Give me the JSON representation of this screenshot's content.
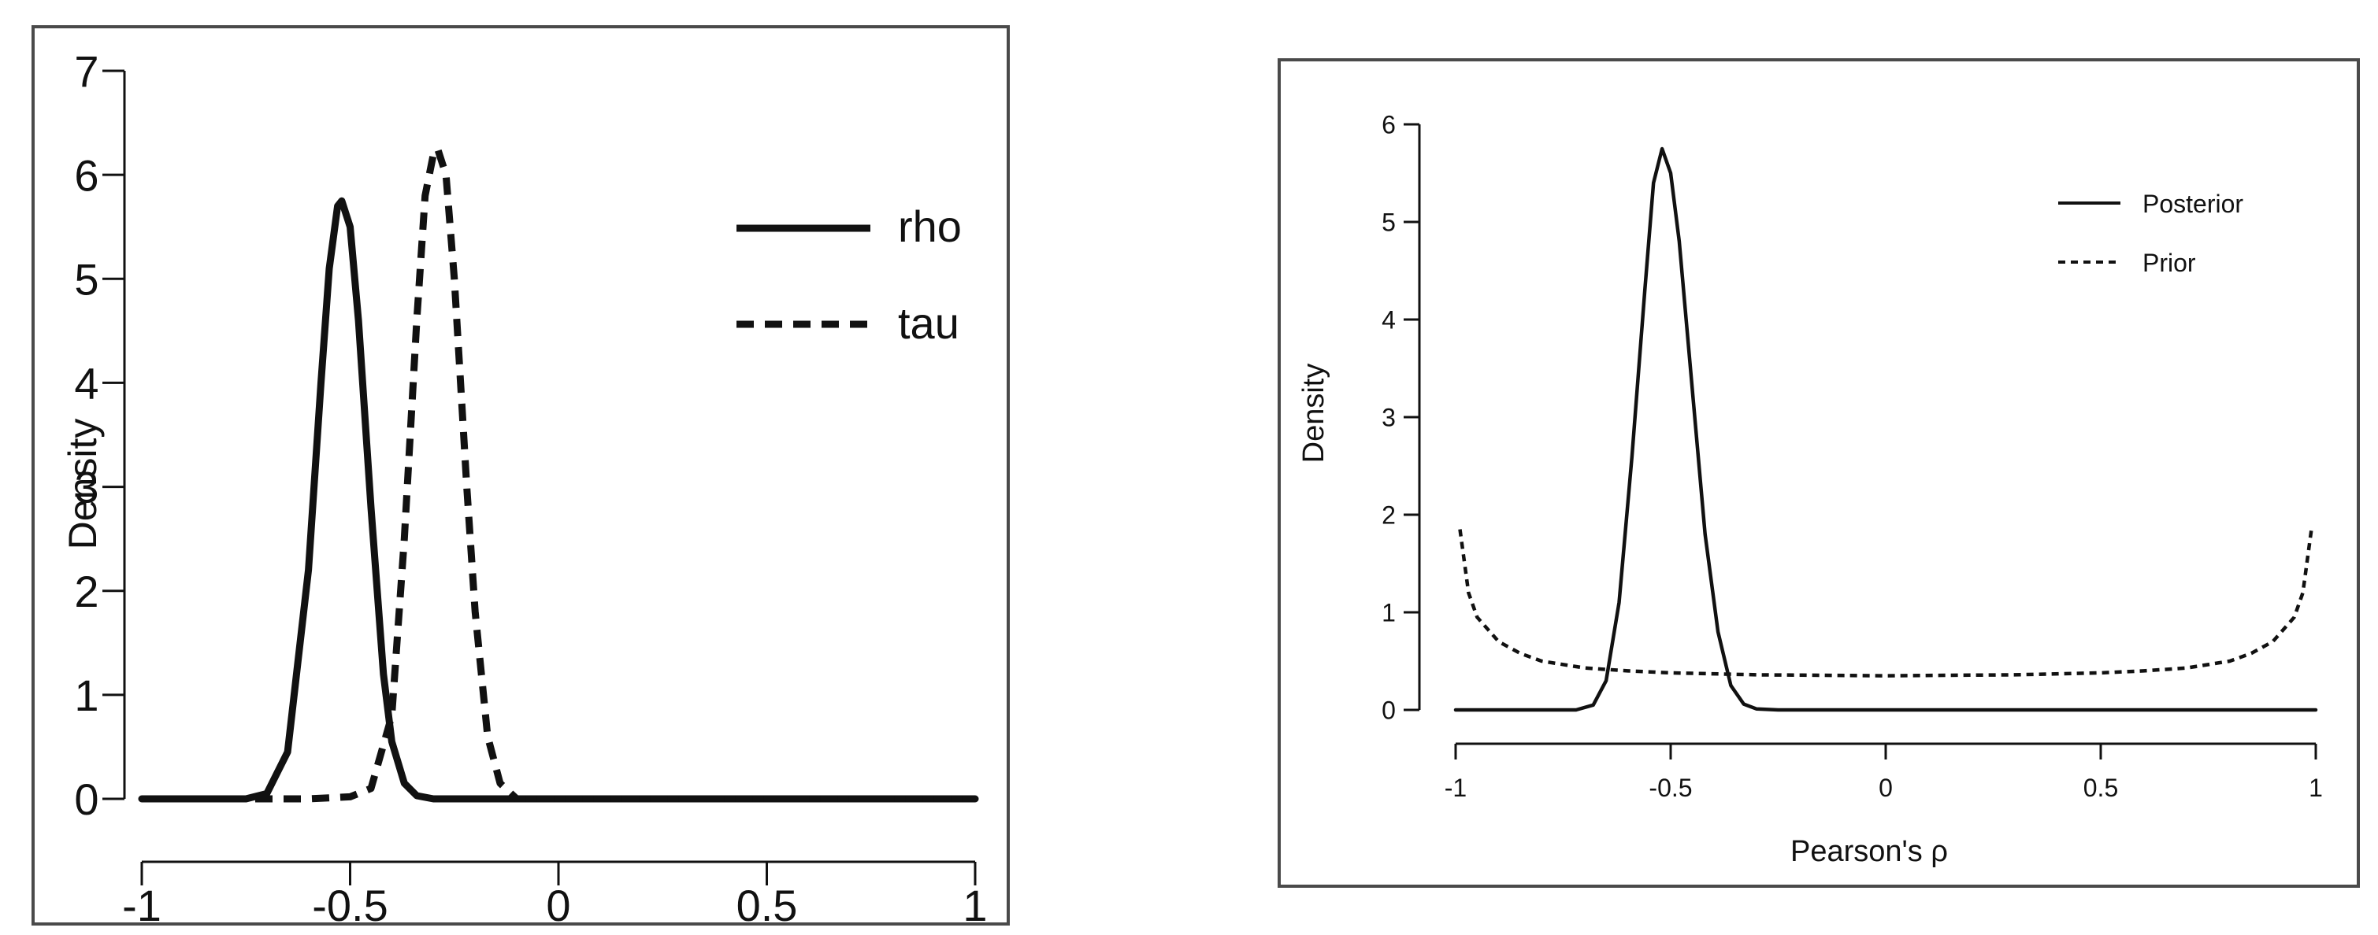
{
  "chart_data": [
    {
      "type": "line",
      "title": "",
      "xlabel": "",
      "ylabel": "Density",
      "xlim": [
        -1,
        1
      ],
      "ylim": [
        0,
        7
      ],
      "x_ticks": [
        -1,
        -0.5,
        0,
        0.5,
        1
      ],
      "x_tick_labels": [
        "-1",
        "-0.5",
        "0",
        "0.5",
        "1"
      ],
      "y_ticks": [
        0,
        1,
        2,
        3,
        4,
        5,
        6,
        7
      ],
      "y_tick_labels": [
        "0",
        "1",
        "2",
        "3",
        "4",
        "5",
        "6",
        "7"
      ],
      "grid": false,
      "legend_position": "top-right",
      "series": [
        {
          "name": "rho",
          "style": "solid",
          "x": [
            -1,
            -0.75,
            -0.7,
            -0.65,
            -0.6,
            -0.57,
            -0.55,
            -0.53,
            -0.52,
            -0.5,
            -0.48,
            -0.45,
            -0.42,
            -0.4,
            -0.37,
            -0.34,
            -0.3,
            -0.25,
            0,
            0.5,
            1
          ],
          "y": [
            0,
            0.0,
            0.05,
            0.45,
            2.2,
            4.0,
            5.1,
            5.7,
            5.75,
            5.5,
            4.6,
            2.8,
            1.2,
            0.55,
            0.15,
            0.03,
            0.0,
            0,
            0,
            0,
            0
          ]
        },
        {
          "name": "tau",
          "style": "dashed",
          "x": [
            -1,
            -0.6,
            -0.5,
            -0.45,
            -0.4,
            -0.37,
            -0.34,
            -0.32,
            -0.3,
            -0.29,
            -0.27,
            -0.25,
            -0.22,
            -0.2,
            -0.17,
            -0.14,
            -0.1,
            0,
            0.5,
            1
          ],
          "y": [
            0,
            0,
            0.02,
            0.1,
            0.8,
            2.5,
            4.6,
            5.8,
            6.2,
            6.25,
            6.0,
            5.0,
            3.0,
            1.8,
            0.6,
            0.15,
            0.0,
            0,
            0,
            0
          ]
        }
      ]
    },
    {
      "type": "line",
      "title": "",
      "xlabel": "Pearson's ρ",
      "ylabel": "Density",
      "xlim": [
        -1,
        1
      ],
      "ylim": [
        0,
        6
      ],
      "x_ticks": [
        -1,
        -0.5,
        0,
        0.5,
        1
      ],
      "x_tick_labels": [
        "-1",
        "-0.5",
        "0",
        "0.5",
        "1"
      ],
      "y_ticks": [
        0,
        1,
        2,
        3,
        4,
        5,
        6
      ],
      "y_tick_labels": [
        "0",
        "1",
        "2",
        "3",
        "4",
        "5",
        "6"
      ],
      "grid": false,
      "legend_position": "top-right",
      "series": [
        {
          "name": "Posterior",
          "style": "solid",
          "x": [
            -1,
            -0.72,
            -0.68,
            -0.65,
            -0.62,
            -0.59,
            -0.56,
            -0.54,
            -0.52,
            -0.5,
            -0.48,
            -0.45,
            -0.42,
            -0.39,
            -0.36,
            -0.33,
            -0.3,
            -0.25,
            0,
            0.5,
            1
          ],
          "y": [
            0,
            0,
            0.05,
            0.3,
            1.1,
            2.6,
            4.3,
            5.4,
            5.75,
            5.5,
            4.8,
            3.3,
            1.8,
            0.8,
            0.25,
            0.06,
            0.01,
            0,
            0,
            0,
            0
          ]
        },
        {
          "name": "Prior",
          "style": "dashed",
          "x": [
            -0.99,
            -0.97,
            -0.95,
            -0.9,
            -0.85,
            -0.8,
            -0.7,
            -0.6,
            -0.5,
            -0.3,
            0,
            0.3,
            0.5,
            0.6,
            0.7,
            0.8,
            0.85,
            0.9,
            0.95,
            0.97,
            0.99
          ],
          "y": [
            1.85,
            1.2,
            0.95,
            0.7,
            0.58,
            0.5,
            0.43,
            0.4,
            0.38,
            0.36,
            0.35,
            0.36,
            0.38,
            0.4,
            0.43,
            0.5,
            0.58,
            0.7,
            0.95,
            1.2,
            1.85
          ]
        }
      ]
    }
  ]
}
